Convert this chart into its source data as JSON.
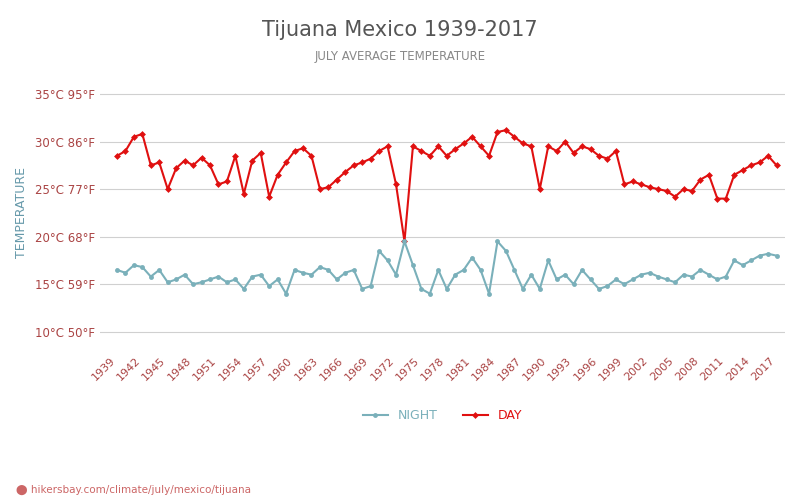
{
  "title": "Tijuana Mexico 1939-2017",
  "subtitle": "JULY AVERAGE TEMPERATURE",
  "ylabel": "TEMPERATURE",
  "xlabel_url": "hikersbay.com/climate/july/mexico/tijuana",
  "legend_night": "NIGHT",
  "legend_day": "DAY",
  "yticks_c": [
    10,
    15,
    20,
    25,
    30,
    35
  ],
  "yticks_f": [
    50,
    59,
    68,
    77,
    86,
    95
  ],
  "ylim": [
    8,
    37
  ],
  "years": [
    1939,
    1940,
    1941,
    1942,
    1943,
    1944,
    1945,
    1946,
    1947,
    1948,
    1949,
    1950,
    1951,
    1952,
    1953,
    1954,
    1955,
    1956,
    1957,
    1958,
    1959,
    1960,
    1961,
    1962,
    1963,
    1964,
    1965,
    1966,
    1967,
    1968,
    1969,
    1970,
    1971,
    1972,
    1973,
    1974,
    1975,
    1976,
    1977,
    1978,
    1979,
    1980,
    1981,
    1982,
    1983,
    1984,
    1985,
    1986,
    1987,
    1988,
    1989,
    1990,
    1991,
    1992,
    1993,
    1994,
    1995,
    1996,
    1997,
    1998,
    1999,
    2000,
    2001,
    2002,
    2003,
    2004,
    2005,
    2006,
    2007,
    2008,
    2009,
    2010,
    2011,
    2012,
    2013,
    2014,
    2015,
    2016,
    2017
  ],
  "day_temps": [
    28.5,
    29.0,
    30.5,
    30.8,
    27.5,
    27.8,
    25.0,
    27.2,
    28.0,
    27.5,
    28.3,
    27.5,
    25.5,
    25.8,
    28.5,
    24.5,
    28.0,
    28.8,
    24.2,
    26.5,
    27.8,
    29.0,
    29.3,
    28.5,
    25.0,
    25.2,
    26.0,
    26.8,
    27.5,
    27.8,
    28.2,
    29.0,
    29.5,
    25.5,
    19.5,
    29.5,
    29.0,
    28.5,
    29.5,
    28.5,
    29.2,
    29.8,
    30.5,
    29.5,
    28.5,
    31.0,
    31.2,
    30.5,
    29.8,
    29.5,
    25.0,
    29.5,
    29.0,
    30.0,
    28.8,
    29.5,
    29.2,
    28.5,
    28.2,
    29.0,
    25.5,
    25.8,
    25.5,
    25.2,
    25.0,
    24.8,
    24.2,
    25.0,
    24.8,
    26.0,
    26.5,
    24.0,
    24.0,
    26.5,
    27.0,
    27.5,
    27.8,
    28.5,
    27.5
  ],
  "night_temps": [
    16.5,
    16.2,
    17.0,
    16.8,
    15.8,
    16.5,
    15.2,
    15.5,
    16.0,
    15.0,
    15.2,
    15.5,
    15.8,
    15.2,
    15.5,
    14.5,
    15.8,
    16.0,
    14.8,
    15.5,
    14.0,
    16.5,
    16.2,
    16.0,
    16.8,
    16.5,
    15.5,
    16.2,
    16.5,
    14.5,
    14.8,
    18.5,
    17.5,
    16.0,
    19.5,
    17.0,
    14.5,
    14.0,
    16.5,
    14.5,
    16.0,
    16.5,
    17.8,
    16.5,
    14.0,
    19.5,
    18.5,
    16.5,
    14.5,
    16.0,
    14.5,
    17.5,
    15.5,
    16.0,
    15.0,
    16.5,
    15.5,
    14.5,
    14.8,
    15.5,
    15.0,
    15.5,
    16.0,
    16.2,
    15.8,
    15.5,
    15.2,
    16.0,
    15.8,
    16.5,
    16.0,
    15.5,
    15.8,
    17.5,
    17.0,
    17.5,
    18.0,
    18.2,
    18.0
  ],
  "day_color": "#e01010",
  "night_color": "#7ab0ba",
  "bg_color": "#ffffff",
  "grid_color": "#d0d0d0",
  "title_color": "#555555",
  "subtitle_color": "#888888",
  "ylabel_color": "#6699aa",
  "tick_color": "#aa4444",
  "url_color": "#cc6666",
  "marker_size": 3.5,
  "line_width": 1.5
}
